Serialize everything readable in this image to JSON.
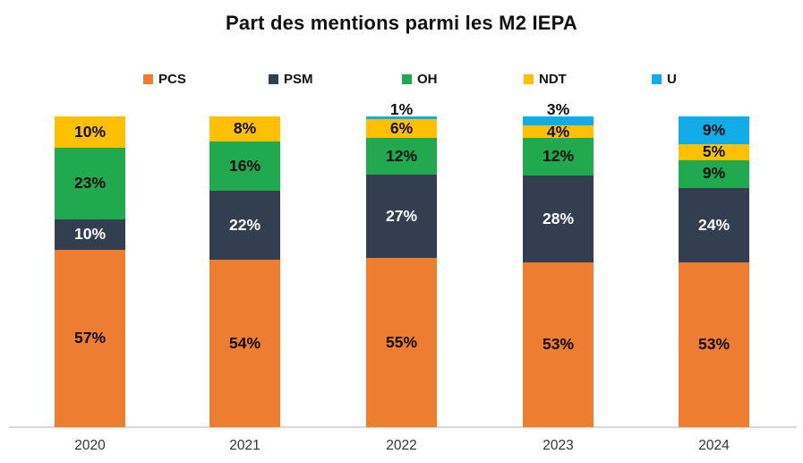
{
  "chart_data": {
    "type": "bar",
    "stacked": true,
    "title": "Part des mentions parmi les M2 IEPA",
    "categories": [
      "2020",
      "2021",
      "2022",
      "2023",
      "2024"
    ],
    "series": [
      {
        "name": "PCS",
        "color": "#ED7D31",
        "label_color": "#0d0d0d",
        "values": [
          57,
          54,
          55,
          53,
          53
        ]
      },
      {
        "name": "PSM",
        "color": "#333F50",
        "label_color": "#ffffff",
        "values": [
          10,
          22,
          27,
          28,
          24
        ]
      },
      {
        "name": "OH",
        "color": "#21A94F",
        "label_color": "#0d0d0d",
        "values": [
          23,
          16,
          12,
          12,
          9
        ]
      },
      {
        "name": "NDT",
        "color": "#FFC000",
        "label_color": "#0d0d0d",
        "values": [
          10,
          8,
          6,
          4,
          5
        ]
      },
      {
        "name": "U",
        "color": "#12ACE8",
        "label_color": "#0d0d0d",
        "values": [
          0,
          0,
          1,
          3,
          9
        ]
      }
    ],
    "value_suffix": "%",
    "ylim": [
      0,
      100
    ],
    "grid": false,
    "legend_position": "top",
    "outside_label_max": 3,
    "axis_line_color": "#d9d9d9"
  }
}
